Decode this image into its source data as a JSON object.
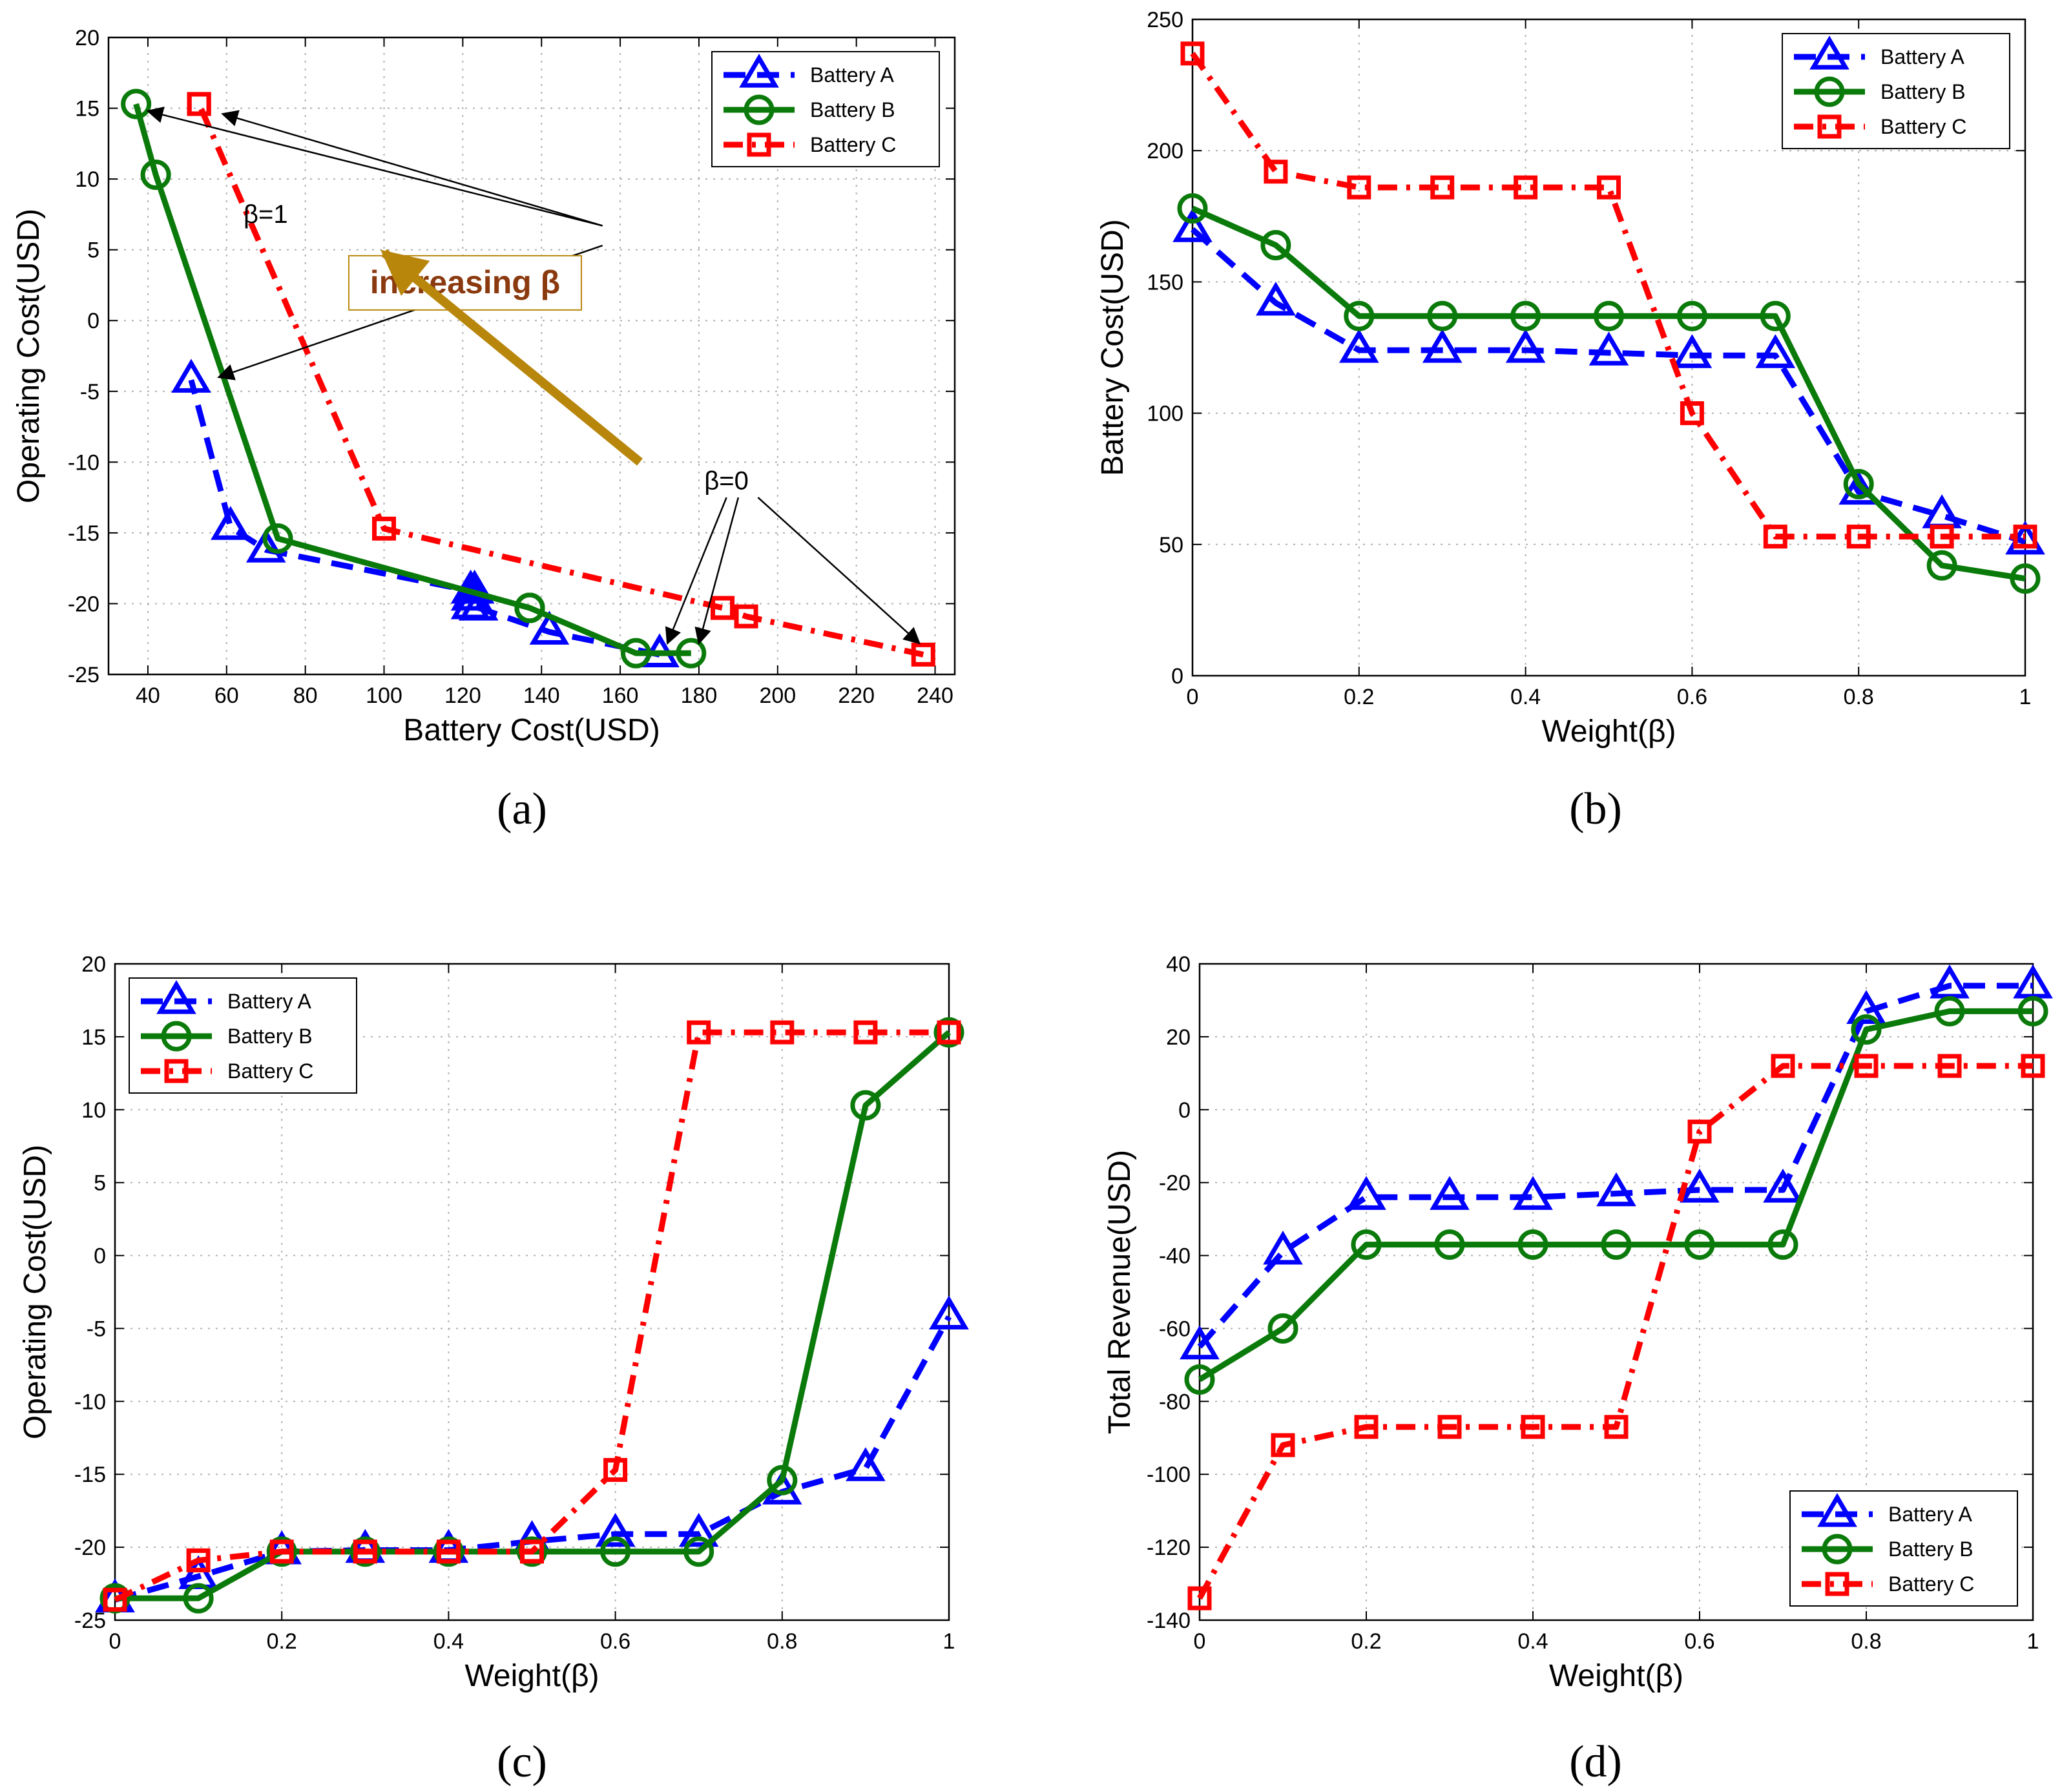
{
  "colors": {
    "A": "#0000FF",
    "B": "#0A7A0A",
    "C": "#FF0000",
    "arrow": "#B8860B",
    "annot_text": "#8B3A0F"
  },
  "chart_data": [
    {
      "panel": "(a)",
      "type": "line",
      "xlabel": "Battery Cost(USD)",
      "ylabel": "Operating Cost(USD)",
      "xlim": [
        30,
        245
      ],
      "ylim": [
        -25,
        20
      ],
      "xticks": [
        40,
        60,
        80,
        100,
        120,
        140,
        160,
        180,
        200,
        220,
        240
      ],
      "yticks": [
        -25,
        -20,
        -15,
        -10,
        -5,
        0,
        5,
        10,
        15,
        20
      ],
      "legend": "top-right",
      "series": [
        {
          "name": "Battery A",
          "key": "A",
          "x": [
            170,
            142,
            124,
            122,
            122,
            123,
            122,
            70,
            61,
            51
          ],
          "y": [
            -23.6,
            -22.0,
            -20.3,
            -20.2,
            -19.6,
            -19.1,
            -19.1,
            -16.2,
            -14.6,
            -4.2
          ]
        },
        {
          "name": "Battery B",
          "key": "B",
          "x": [
            178,
            164,
            137,
            137,
            137,
            137,
            137,
            73,
            42,
            37
          ],
          "y": [
            -23.5,
            -23.5,
            -20.3,
            -20.3,
            -20.3,
            -20.3,
            -20.3,
            -15.4,
            10.3,
            15.3
          ]
        },
        {
          "name": "Battery C",
          "key": "C",
          "x": [
            237,
            192,
            186,
            186,
            186,
            186,
            100,
            53,
            53,
            53
          ],
          "y": [
            -23.6,
            -20.9,
            -20.3,
            -20.3,
            -20.3,
            -20.3,
            -14.7,
            15.3,
            15.3,
            15.3
          ]
        }
      ],
      "annotations": {
        "beta1": "β=1",
        "beta0": "β=0",
        "increasing": "increasing β"
      }
    },
    {
      "panel": "(b)",
      "type": "line",
      "xlabel": "Weight(β)",
      "ylabel": "Battery Cost(USD)",
      "xlim": [
        0,
        1
      ],
      "ylim": [
        0,
        250
      ],
      "xticks": [
        0,
        0.2,
        0.4,
        0.6,
        0.8,
        1
      ],
      "yticks": [
        0,
        50,
        100,
        150,
        200,
        250
      ],
      "legend": "top-right",
      "x": [
        0,
        0.1,
        0.2,
        0.3,
        0.4,
        0.5,
        0.6,
        0.7,
        0.8,
        0.9,
        1
      ],
      "series": [
        {
          "name": "Battery A",
          "key": "A",
          "values": [
            170,
            142,
            124,
            124,
            124,
            123,
            122,
            122,
            70,
            61,
            51
          ]
        },
        {
          "name": "Battery B",
          "key": "B",
          "values": [
            178,
            164,
            137,
            137,
            137,
            137,
            137,
            137,
            73,
            42,
            37
          ]
        },
        {
          "name": "Battery C",
          "key": "C",
          "values": [
            237,
            192,
            186,
            186,
            186,
            186,
            100,
            53,
            53,
            53,
            53
          ]
        }
      ]
    },
    {
      "panel": "(c)",
      "type": "line",
      "xlabel": "Weight(β)",
      "ylabel": "Operating Cost(USD)",
      "xlim": [
        0,
        1
      ],
      "ylim": [
        -25,
        20
      ],
      "xticks": [
        0,
        0.2,
        0.4,
        0.6,
        0.8,
        1
      ],
      "yticks": [
        -25,
        -20,
        -15,
        -10,
        -5,
        0,
        5,
        10,
        15,
        20
      ],
      "legend": "top-left",
      "x": [
        0,
        0.1,
        0.2,
        0.3,
        0.4,
        0.5,
        0.6,
        0.7,
        0.8,
        0.9,
        1
      ],
      "series": [
        {
          "name": "Battery A",
          "key": "A",
          "values": [
            -23.6,
            -22.0,
            -20.3,
            -20.2,
            -20.2,
            -19.6,
            -19.1,
            -19.1,
            -16.2,
            -14.6,
            -4.2
          ]
        },
        {
          "name": "Battery B",
          "key": "B",
          "values": [
            -23.5,
            -23.5,
            -20.3,
            -20.3,
            -20.3,
            -20.3,
            -20.3,
            -20.3,
            -15.4,
            10.3,
            15.3
          ]
        },
        {
          "name": "Battery C",
          "key": "C",
          "values": [
            -23.6,
            -20.9,
            -20.3,
            -20.3,
            -20.3,
            -20.3,
            -14.7,
            15.3,
            15.3,
            15.3,
            15.3
          ]
        }
      ]
    },
    {
      "panel": "(d)",
      "type": "line",
      "xlabel": "Weight(β)",
      "ylabel": "Total Revenue(USD)",
      "xlim": [
        0,
        1
      ],
      "ylim": [
        -140,
        40
      ],
      "xticks": [
        0,
        0.2,
        0.4,
        0.6,
        0.8,
        1
      ],
      "yticks": [
        -140,
        -120,
        -100,
        -80,
        -60,
        -40,
        -20,
        0,
        20,
        40
      ],
      "legend": "bottom-right",
      "x": [
        0,
        0.1,
        0.2,
        0.3,
        0.4,
        0.5,
        0.6,
        0.7,
        0.8,
        0.9,
        1
      ],
      "series": [
        {
          "name": "Battery A",
          "key": "A",
          "values": [
            -65,
            -39,
            -24,
            -24,
            -24,
            -23,
            -22,
            -22,
            27,
            34,
            34
          ]
        },
        {
          "name": "Battery B",
          "key": "B",
          "values": [
            -74,
            -60,
            -37,
            -37,
            -37,
            -37,
            -37,
            -37,
            22,
            27,
            27
          ]
        },
        {
          "name": "Battery C",
          "key": "C",
          "values": [
            -134,
            -92,
            -87,
            -87,
            -87,
            -87,
            -6,
            12,
            12,
            12,
            12
          ]
        }
      ]
    }
  ]
}
